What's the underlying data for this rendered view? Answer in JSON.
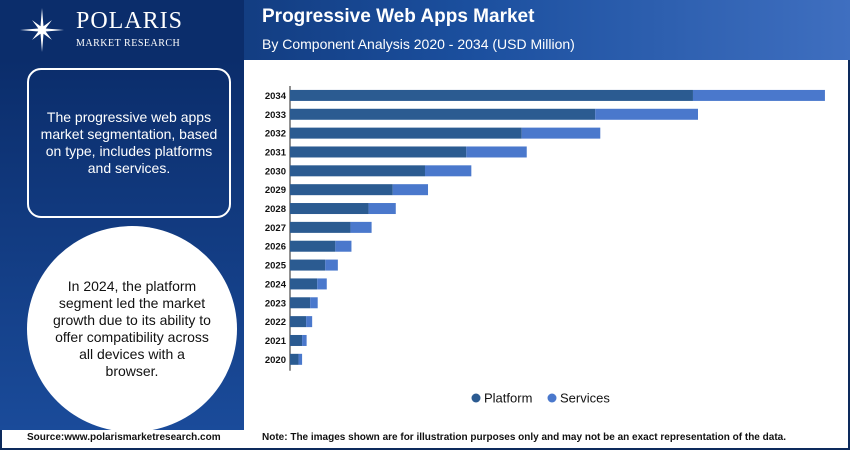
{
  "brand": {
    "name": "POLARIS",
    "tagline": "MARKET RESEARCH"
  },
  "header": {
    "title": "Progressive Web Apps Market",
    "subtitle": "By Component Analysis 2020 - 2034 (USD Million)"
  },
  "sidebar": {
    "box_text": "The progressive web apps market segmentation, based on type, includes platforms and services.",
    "circle_text": "In 2024, the platform segment led the market growth due to its ability to offer compatibility across all devices with a browser."
  },
  "footer": {
    "source": "Source:www.polarismarketresearch.com",
    "note": "Note: The images shown are for illustration purposes only and may not be an exact representation of the data."
  },
  "colors": {
    "platform": "#2b5b91",
    "services": "#4a78cc"
  },
  "chart_data": {
    "type": "bar",
    "orientation": "horizontal",
    "stacked": true,
    "categories": [
      "2034",
      "2033",
      "2032",
      "2031",
      "2030",
      "2029",
      "2028",
      "2027",
      "2026",
      "2025",
      "2024",
      "2023",
      "2022",
      "2021",
      "2020"
    ],
    "series": [
      {
        "name": "Platform",
        "values": [
          4000,
          3030,
          2300,
          1750,
          1340,
          1020,
          780,
          600,
          450,
          350,
          270,
          200,
          160,
          120,
          85
        ]
      },
      {
        "name": "Services",
        "values": [
          1310,
          1020,
          780,
          600,
          460,
          350,
          270,
          210,
          160,
          125,
          95,
          75,
          60,
          45,
          35
        ]
      }
    ],
    "legend_position": "bottom",
    "grid": false,
    "xlim": [
      0,
      5400
    ]
  }
}
